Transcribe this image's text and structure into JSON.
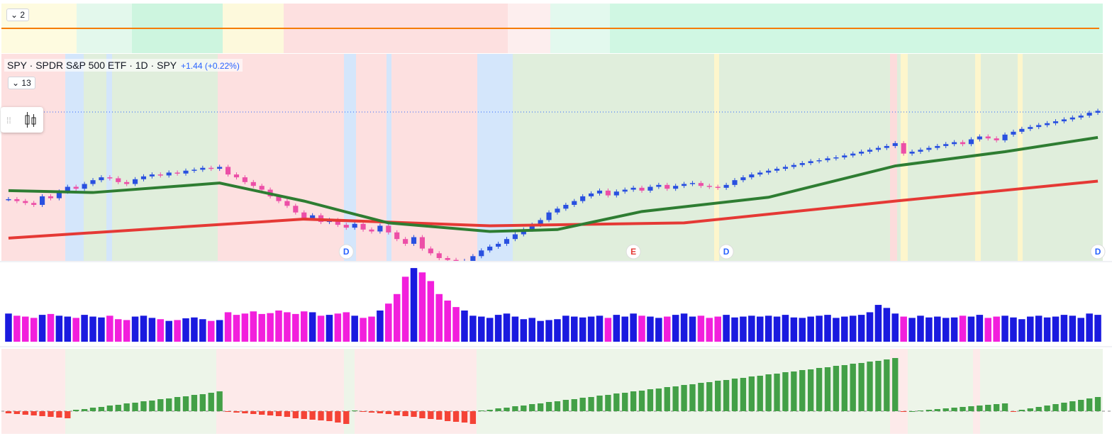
{
  "chart_data": {
    "type": "candlestick",
    "title": "SPY · SPDR S&P 500 ETF · 1D · SPY",
    "change": "+1.44 (+0.22%)",
    "top_pane_label": "2",
    "indicator_count": "13",
    "closes": [
      562,
      560,
      558,
      556,
      565,
      563,
      570,
      575,
      573,
      578,
      582,
      585,
      584,
      580,
      578,
      583,
      586,
      588,
      587,
      590,
      589,
      592,
      593,
      595,
      594,
      596,
      588,
      585,
      580,
      576,
      572,
      565,
      560,
      555,
      548,
      542,
      545,
      538,
      540,
      535,
      532,
      536,
      530,
      528,
      534,
      527,
      520,
      515,
      522,
      510,
      505,
      500,
      498,
      495,
      497,
      502,
      508,
      512,
      515,
      520,
      525,
      530,
      535,
      540,
      548,
      552,
      556,
      560,
      565,
      568,
      571,
      566,
      570,
      572,
      574,
      571,
      575,
      577,
      573,
      576,
      578,
      579,
      576,
      575,
      574,
      577,
      582,
      585,
      588,
      590,
      592,
      594,
      596,
      598,
      600,
      602,
      603,
      605,
      606,
      608,
      610,
      612,
      614,
      616,
      618,
      621,
      610,
      612,
      614,
      616,
      618,
      620,
      622,
      620,
      625,
      628,
      626,
      624,
      630,
      633,
      636,
      638,
      640,
      642,
      644,
      646,
      648,
      650,
      653,
      655
    ],
    "ylim": [
      497,
      715
    ],
    "ma_fast": {
      "color": "#2e7d32",
      "index": [
        0,
        10,
        25,
        35,
        45,
        57,
        65,
        75,
        90,
        105,
        118,
        129
      ],
      "values": [
        571,
        569,
        579,
        560,
        537,
        528,
        530,
        549,
        564,
        597,
        612,
        627
      ]
    },
    "ma_slow": {
      "color": "#e53935",
      "index": [
        0,
        35,
        57,
        80,
        105,
        129
      ],
      "values": [
        521,
        541,
        534,
        537,
        560,
        581
      ]
    },
    "events": [
      {
        "label": "D",
        "index": 40
      },
      {
        "label": "E",
        "index": 74
      },
      {
        "label": "D",
        "index": 85
      },
      {
        "label": "D",
        "index": 129
      }
    ],
    "volume": {
      "ylim": [
        0,
        180
      ],
      "values": [
        65,
        60,
        58,
        55,
        62,
        64,
        60,
        58,
        55,
        62,
        58,
        56,
        60,
        52,
        50,
        58,
        60,
        55,
        52,
        48,
        50,
        54,
        56,
        52,
        48,
        50,
        68,
        62,
        65,
        70,
        64,
        66,
        72,
        68,
        64,
        70,
        68,
        60,
        62,
        65,
        68,
        60,
        55,
        58,
        72,
        88,
        110,
        150,
        170,
        160,
        140,
        110,
        95,
        80,
        72,
        60,
        58,
        55,
        62,
        65,
        58,
        52,
        55,
        48,
        50,
        52,
        60,
        58,
        56,
        58,
        60,
        55,
        62,
        58,
        65,
        60,
        58,
        55,
        58,
        62,
        65,
        58,
        60,
        55,
        58,
        62,
        56,
        58,
        60,
        58,
        60,
        58,
        62,
        56,
        55,
        58,
        60,
        62,
        55,
        58,
        60,
        62,
        68,
        85,
        78,
        65,
        58,
        55,
        60,
        56,
        58,
        55,
        56,
        60,
        58,
        62,
        55,
        58,
        60,
        56,
        52,
        58,
        60,
        56,
        58,
        62,
        60,
        55,
        65,
        62
      ]
    },
    "histogram": {
      "ylim": [
        -32,
        88
      ],
      "values": [
        -3,
        -4,
        -5,
        -6,
        -7,
        -8,
        -9,
        -10,
        2,
        3,
        5,
        6,
        8,
        9,
        11,
        12,
        14,
        15,
        17,
        18,
        20,
        21,
        23,
        24,
        26,
        28,
        -1,
        -2,
        -3,
        -4,
        -5,
        -6,
        -7,
        -8,
        -10,
        -11,
        -12,
        -13,
        -14,
        -16,
        -18,
        1,
        -1,
        -2,
        -3,
        -4,
        -6,
        -7,
        -8,
        -10,
        -11,
        -12,
        -14,
        -15,
        -16,
        -18,
        1,
        2,
        4,
        5,
        7,
        8,
        10,
        11,
        13,
        14,
        16,
        17,
        19,
        20,
        22,
        23,
        25,
        26,
        28,
        29,
        31,
        32,
        34,
        35,
        37,
        38,
        40,
        41,
        43,
        44,
        46,
        47,
        49,
        50,
        52,
        53,
        55,
        56,
        58,
        59,
        61,
        62,
        64,
        65,
        67,
        68,
        70,
        71,
        73,
        75,
        -1,
        0,
        1,
        2,
        3,
        4,
        5,
        6,
        7,
        8,
        9,
        10,
        11,
        -1,
        2,
        4,
        6,
        8,
        10,
        12,
        14,
        16,
        18,
        20
      ]
    }
  }
}
